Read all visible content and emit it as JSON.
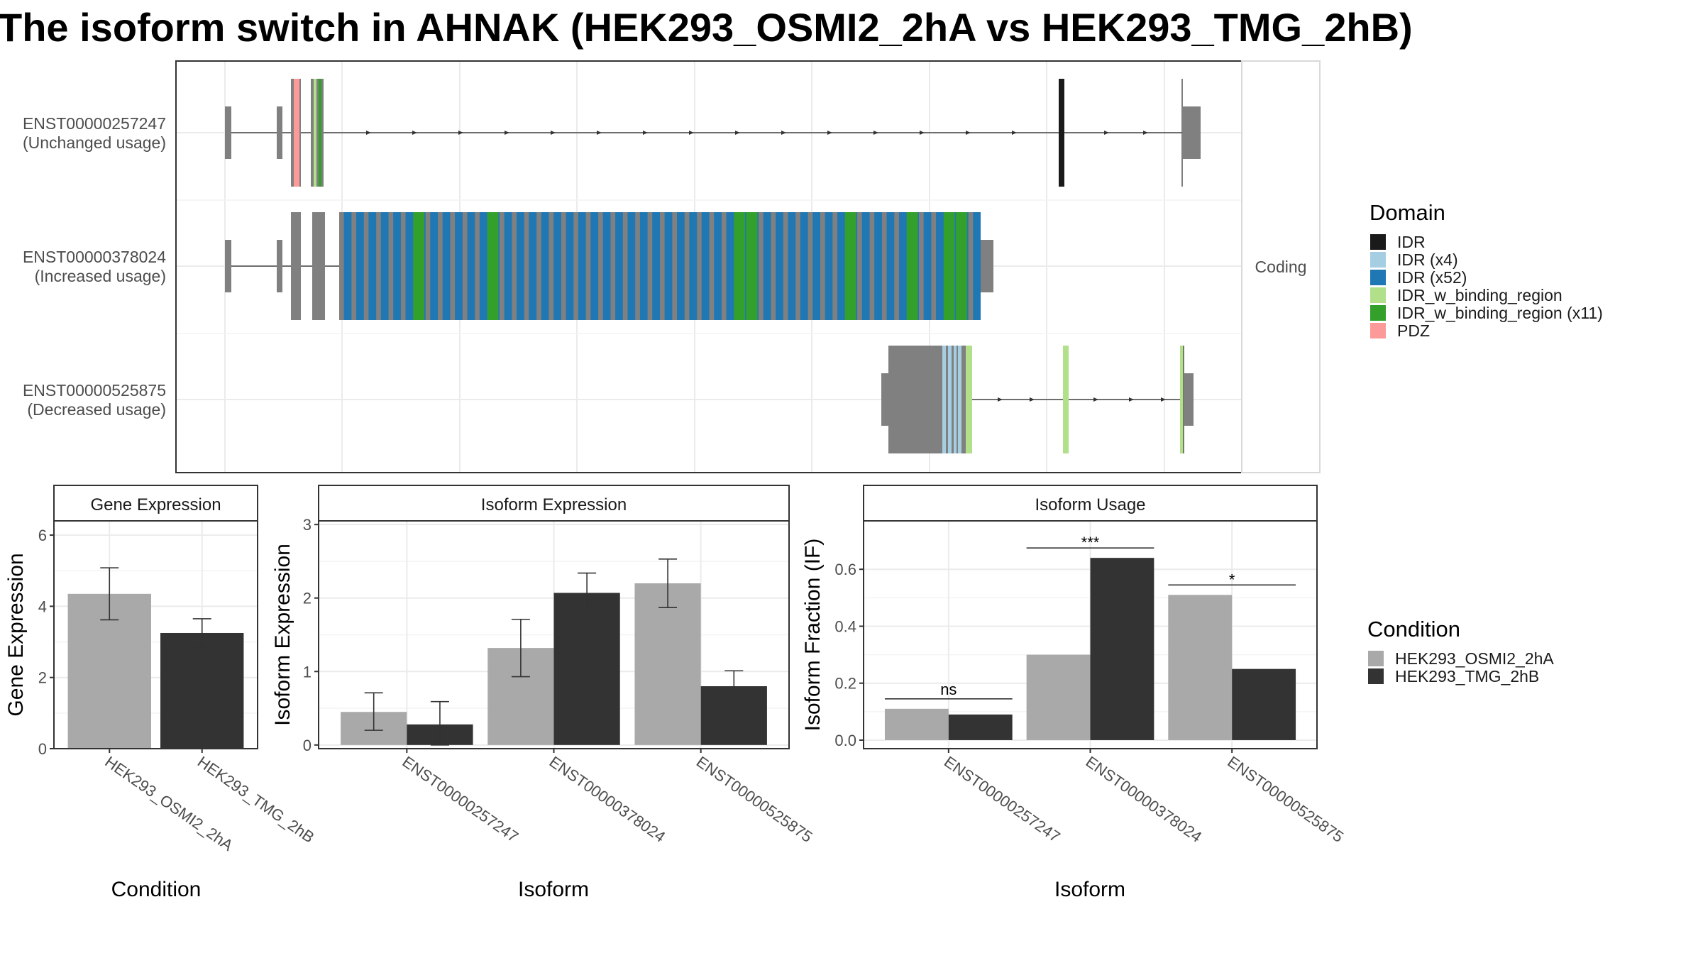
{
  "title": "The isoform switch in AHNAK (HEK293_OSMI2_2hA vs HEK293_TMG_2hB)",
  "transcript_panel": {
    "strip_label": "Coding",
    "isoforms": [
      {
        "id": "ENST00000257247",
        "usage": "(Unchanged usage)"
      },
      {
        "id": "ENST00000378024",
        "usage": "(Increased usage)"
      },
      {
        "id": "ENST00000525875",
        "usage": "(Decreased usage)"
      }
    ],
    "domain_legend": {
      "title": "Domain",
      "entries": [
        {
          "label": "IDR",
          "color": "#1a1a1a"
        },
        {
          "label": "IDR (x4)",
          "color": "#a6cee3"
        },
        {
          "label": "IDR (x52)",
          "color": "#1f78b4"
        },
        {
          "label": "IDR_w_binding_region",
          "color": "#b2df8a"
        },
        {
          "label": "IDR_w_binding_region (x11)",
          "color": "#33a02c"
        },
        {
          "label": "PDZ",
          "color": "#fb9a99"
        }
      ]
    }
  },
  "condition_legend": {
    "title": "Condition",
    "entries": [
      {
        "label": "HEK293_OSMI2_2hA",
        "color": "#a9a9a9"
      },
      {
        "label": "HEK293_TMG_2hB",
        "color": "#333333"
      }
    ]
  },
  "chart_data": [
    {
      "type": "bar",
      "title": "Gene Expression",
      "xlabel": "Condition",
      "ylabel": "Gene Expression",
      "ylim": [
        0,
        6.4
      ],
      "yticks": [
        0,
        2,
        4,
        6
      ],
      "categories": [
        "HEK293_OSMI2_2hA",
        "HEK293_TMG_2hB"
      ],
      "values": [
        4.35,
        3.25
      ],
      "errors": [
        [
          3.62,
          5.08
        ],
        [
          2.85,
          3.65
        ]
      ],
      "colors": [
        "#a9a9a9",
        "#333333"
      ]
    },
    {
      "type": "bar",
      "title": "Isoform Expression",
      "xlabel": "Isoform",
      "ylabel": "Isoform Expression",
      "ylim": [
        -0.05,
        3.05
      ],
      "yticks": [
        0,
        1,
        2,
        3
      ],
      "categories": [
        "ENST00000257247",
        "ENST00000378024",
        "ENST00000525875"
      ],
      "series": [
        {
          "name": "HEK293_OSMI2_2hA",
          "values": [
            0.45,
            1.32,
            2.2
          ],
          "errors": [
            [
              0.2,
              0.71
            ],
            [
              0.93,
              1.71
            ],
            [
              1.87,
              2.53
            ]
          ]
        },
        {
          "name": "HEK293_TMG_2hB",
          "values": [
            0.28,
            2.07,
            0.8
          ],
          "errors": [
            [
              0.0,
              0.59
            ],
            [
              1.8,
              2.34
            ],
            [
              0.6,
              1.01
            ]
          ]
        }
      ]
    },
    {
      "type": "bar",
      "title": "Isoform Usage",
      "xlabel": "Isoform",
      "ylabel": "Isoform Fraction (IF)",
      "ylim": [
        -0.03,
        0.77
      ],
      "yticks": [
        "0.0",
        "0.2",
        "0.4",
        "0.6"
      ],
      "categories": [
        "ENST00000257247",
        "ENST00000378024",
        "ENST00000525875"
      ],
      "series": [
        {
          "name": "HEK293_OSMI2_2hA",
          "values": [
            0.11,
            0.3,
            0.51
          ]
        },
        {
          "name": "HEK293_TMG_2hB",
          "values": [
            0.09,
            0.64,
            0.25
          ]
        }
      ],
      "significance": [
        "ns",
        "***",
        "*"
      ]
    }
  ]
}
